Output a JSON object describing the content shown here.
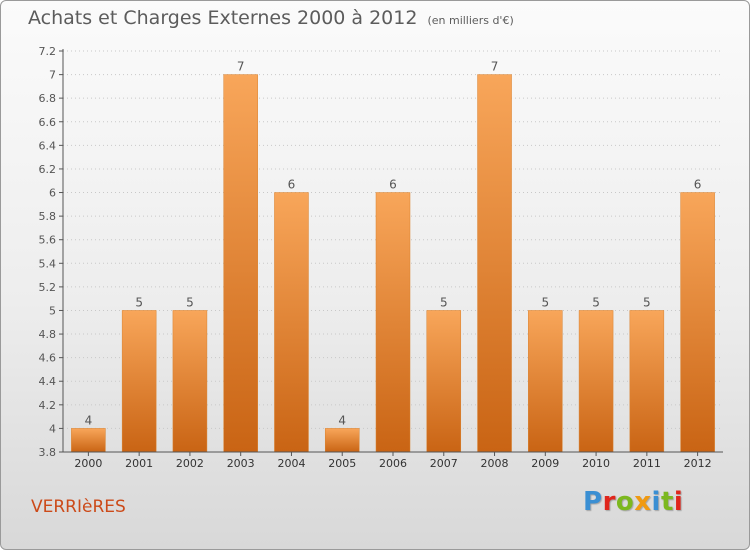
{
  "header": {
    "title": "Achats et Charges Externes 2000 à 2012",
    "unit": "(en milliers d'€)"
  },
  "footer": {
    "commune": "VERRIèRES",
    "logo": {
      "letters": [
        "P",
        "r",
        "o",
        "x",
        "i",
        "t",
        "i"
      ],
      "colors": [
        "#3a8fd3",
        "#e0261c",
        "#7cb81f",
        "#f09a12",
        "#3a8fd3",
        "#7cb81f",
        "#e0261c"
      ]
    }
  },
  "colors": {
    "bar_light": "#f8a65a",
    "bar_dark": "#c96414",
    "axis": "#555555",
    "grid": "#c8c8c8",
    "title": "#5c5c5c",
    "commune": "#cc4a19"
  },
  "chart_data": {
    "type": "bar",
    "title": "Achats et Charges Externes 2000 à 2012",
    "subtitle": "(en milliers d'€)",
    "xlabel": "",
    "ylabel": "",
    "categories": [
      "2000",
      "2001",
      "2002",
      "2003",
      "2004",
      "2005",
      "2006",
      "2007",
      "2008",
      "2009",
      "2010",
      "2011",
      "2012"
    ],
    "values": [
      4,
      5,
      5,
      7,
      6,
      4,
      6,
      5,
      7,
      5,
      5,
      5,
      6
    ],
    "data_labels": [
      "4",
      "5",
      "5",
      "7",
      "6",
      "4",
      "6",
      "5",
      "7",
      "5",
      "5",
      "5",
      "6"
    ],
    "ylim": [
      3.8,
      7.2
    ],
    "yticks": [
      3.8,
      4,
      4.2,
      4.4,
      4.6,
      4.8,
      5,
      5.2,
      5.4,
      5.6,
      5.8,
      6,
      6.2,
      6.4,
      6.6,
      6.8,
      7,
      7.2
    ],
    "ytick_labels": [
      "3.8",
      "4",
      "4.2",
      "4.4",
      "4.6",
      "4.8",
      "5",
      "5.2",
      "5.4",
      "5.6",
      "5.8",
      "6",
      "6.2",
      "6.4",
      "6.6",
      "6.8",
      "7",
      "7.2"
    ],
    "grid": true,
    "legend": "none"
  }
}
